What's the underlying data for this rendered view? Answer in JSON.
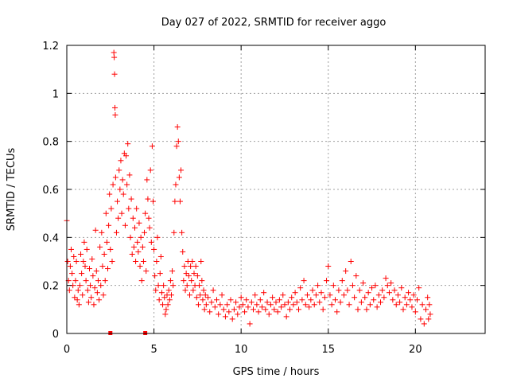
{
  "chart_data": {
    "type": "scatter",
    "title": "Day 027 of 2022, SRMTID for receiver aggo",
    "xlabel": "GPS time / hours",
    "ylabel": "SRMTID / TECUs",
    "xlim": [
      0,
      24
    ],
    "ylim": [
      0,
      1.2
    ],
    "x_ticks": [
      0,
      5,
      10,
      15,
      20
    ],
    "x_tick_labels": [
      "0",
      "5",
      "10",
      "15",
      "20"
    ],
    "y_ticks": [
      0,
      0.2,
      0.4,
      0.6,
      0.8,
      1.0,
      1.2
    ],
    "y_tick_labels": [
      "0",
      "0.2",
      "0.4",
      "0.6",
      "0.8",
      "1",
      "1.2"
    ],
    "grid": true,
    "marker": "plus",
    "series": [
      {
        "name": "SRMTID",
        "color": "#ff0000",
        "points": [
          [
            0.0,
            0.47
          ],
          [
            0.05,
            0.3
          ],
          [
            0.1,
            0.22
          ],
          [
            0.15,
            0.18
          ],
          [
            0.2,
            0.28
          ],
          [
            0.25,
            0.35
          ],
          [
            0.3,
            0.25
          ],
          [
            0.35,
            0.2
          ],
          [
            0.4,
            0.32
          ],
          [
            0.45,
            0.15
          ],
          [
            0.5,
            0.22
          ],
          [
            0.55,
            0.3
          ],
          [
            0.6,
            0.14
          ],
          [
            0.65,
            0.18
          ],
          [
            0.7,
            0.12
          ],
          [
            0.75,
            0.2
          ],
          [
            0.8,
            0.33
          ],
          [
            0.85,
            0.25
          ],
          [
            0.9,
            0.16
          ],
          [
            0.95,
            0.3
          ],
          [
            1.0,
            0.38
          ],
          [
            1.05,
            0.28
          ],
          [
            1.1,
            0.22
          ],
          [
            1.15,
            0.35
          ],
          [
            1.2,
            0.18
          ],
          [
            1.25,
            0.13
          ],
          [
            1.3,
            0.27
          ],
          [
            1.35,
            0.2
          ],
          [
            1.4,
            0.15
          ],
          [
            1.45,
            0.31
          ],
          [
            1.5,
            0.24
          ],
          [
            1.55,
            0.12
          ],
          [
            1.6,
            0.19
          ],
          [
            1.65,
            0.43
          ],
          [
            1.7,
            0.26
          ],
          [
            1.75,
            0.17
          ],
          [
            1.8,
            0.22
          ],
          [
            1.85,
            0.14
          ],
          [
            1.9,
            0.36
          ],
          [
            1.95,
            0.2
          ],
          [
            2.0,
            0.42
          ],
          [
            2.05,
            0.28
          ],
          [
            2.1,
            0.16
          ],
          [
            2.15,
            0.33
          ],
          [
            2.2,
            0.22
          ],
          [
            2.25,
            0.5
          ],
          [
            2.3,
            0.38
          ],
          [
            2.35,
            0.27
          ],
          [
            2.4,
            0.45
          ],
          [
            2.45,
            0.58
          ],
          [
            2.5,
            0.35
          ],
          [
            2.55,
            0.52
          ],
          [
            2.6,
            0.3
          ],
          [
            2.65,
            0.62
          ],
          [
            2.7,
            1.17
          ],
          [
            2.72,
            1.15
          ],
          [
            2.74,
            1.08
          ],
          [
            2.76,
            0.94
          ],
          [
            2.78,
            0.91
          ],
          [
            2.8,
            0.65
          ],
          [
            2.85,
            0.42
          ],
          [
            2.9,
            0.55
          ],
          [
            2.95,
            0.48
          ],
          [
            3.0,
            0.68
          ],
          [
            3.05,
            0.6
          ],
          [
            3.1,
            0.72
          ],
          [
            3.15,
            0.5
          ],
          [
            3.2,
            0.64
          ],
          [
            3.25,
            0.58
          ],
          [
            3.3,
            0.75
          ],
          [
            3.35,
            0.45
          ],
          [
            3.4,
            0.74
          ],
          [
            3.45,
            0.62
          ],
          [
            3.5,
            0.79
          ],
          [
            3.55,
            0.52
          ],
          [
            3.6,
            0.66
          ],
          [
            3.65,
            0.4
          ],
          [
            3.7,
            0.56
          ],
          [
            3.75,
            0.33
          ],
          [
            3.8,
            0.48
          ],
          [
            3.85,
            0.36
          ],
          [
            3.9,
            0.44
          ],
          [
            3.95,
            0.3
          ],
          [
            4.0,
            0.52
          ],
          [
            4.05,
            0.38
          ],
          [
            4.1,
            0.34
          ],
          [
            4.15,
            0.46
          ],
          [
            4.2,
            0.28
          ],
          [
            4.25,
            0.4
          ],
          [
            4.3,
            0.22
          ],
          [
            4.35,
            0.36
          ],
          [
            4.4,
            0.3
          ],
          [
            4.45,
            0.42
          ],
          [
            4.5,
            0.5
          ],
          [
            4.55,
            0.26
          ],
          [
            4.6,
            0.64
          ],
          [
            4.65,
            0.56
          ],
          [
            4.7,
            0.48
          ],
          [
            4.75,
            0.44
          ],
          [
            4.8,
            0.68
          ],
          [
            4.85,
            0.38
          ],
          [
            4.9,
            0.78
          ],
          [
            4.95,
            0.55
          ],
          [
            5.0,
            0.35
          ],
          [
            5.05,
            0.24
          ],
          [
            5.1,
            0.18
          ],
          [
            5.15,
            0.3
          ],
          [
            5.2,
            0.4
          ],
          [
            5.25,
            0.2
          ],
          [
            5.3,
            0.14
          ],
          [
            5.35,
            0.25
          ],
          [
            5.4,
            0.32
          ],
          [
            5.45,
            0.17
          ],
          [
            5.5,
            0.12
          ],
          [
            5.55,
            0.2
          ],
          [
            5.6,
            0.15
          ],
          [
            5.65,
            0.08
          ],
          [
            5.7,
            0.1
          ],
          [
            5.75,
            0.16
          ],
          [
            5.8,
            0.12
          ],
          [
            5.85,
            0.18
          ],
          [
            5.9,
            0.14
          ],
          [
            5.95,
            0.22
          ],
          [
            6.0,
            0.16
          ],
          [
            6.05,
            0.26
          ],
          [
            6.1,
            0.2
          ],
          [
            6.15,
            0.42
          ],
          [
            6.2,
            0.55
          ],
          [
            6.25,
            0.62
          ],
          [
            6.3,
            0.78
          ],
          [
            6.35,
            0.86
          ],
          [
            6.4,
            0.8
          ],
          [
            6.45,
            0.65
          ],
          [
            6.5,
            0.55
          ],
          [
            6.55,
            0.68
          ],
          [
            6.6,
            0.42
          ],
          [
            6.65,
            0.34
          ],
          [
            6.7,
            0.22
          ],
          [
            6.75,
            0.28
          ],
          [
            6.8,
            0.18
          ],
          [
            6.85,
            0.25
          ],
          [
            6.9,
            0.2
          ],
          [
            6.95,
            0.3
          ],
          [
            7.0,
            0.24
          ],
          [
            7.05,
            0.16
          ],
          [
            7.1,
            0.28
          ],
          [
            7.15,
            0.22
          ],
          [
            7.2,
            0.3
          ],
          [
            7.25,
            0.18
          ],
          [
            7.3,
            0.25
          ],
          [
            7.35,
            0.2
          ],
          [
            7.4,
            0.28
          ],
          [
            7.45,
            0.15
          ],
          [
            7.5,
            0.24
          ],
          [
            7.55,
            0.12
          ],
          [
            7.6,
            0.2
          ],
          [
            7.65,
            0.16
          ],
          [
            7.7,
            0.3
          ],
          [
            7.75,
            0.22
          ],
          [
            7.8,
            0.14
          ],
          [
            7.85,
            0.18
          ],
          [
            7.9,
            0.1
          ],
          [
            7.95,
            0.16
          ],
          [
            8.0,
            0.12
          ],
          [
            8.1,
            0.15
          ],
          [
            8.2,
            0.09
          ],
          [
            8.3,
            0.13
          ],
          [
            8.4,
            0.18
          ],
          [
            8.5,
            0.11
          ],
          [
            8.6,
            0.14
          ],
          [
            8.7,
            0.08
          ],
          [
            8.8,
            0.12
          ],
          [
            8.9,
            0.16
          ],
          [
            9.0,
            0.1
          ],
          [
            9.1,
            0.07
          ],
          [
            9.2,
            0.12
          ],
          [
            9.3,
            0.09
          ],
          [
            9.4,
            0.14
          ],
          [
            9.5,
            0.06
          ],
          [
            9.6,
            0.1
          ],
          [
            9.7,
            0.13
          ],
          [
            9.8,
            0.08
          ],
          [
            9.9,
            0.11
          ],
          [
            10.0,
            0.15
          ],
          [
            10.1,
            0.12
          ],
          [
            10.2,
            0.09
          ],
          [
            10.3,
            0.14
          ],
          [
            10.4,
            0.11
          ],
          [
            10.5,
            0.04
          ],
          [
            10.6,
            0.13
          ],
          [
            10.7,
            0.1
          ],
          [
            10.8,
            0.16
          ],
          [
            10.9,
            0.12
          ],
          [
            11.0,
            0.09
          ],
          [
            11.1,
            0.14
          ],
          [
            11.2,
            0.11
          ],
          [
            11.3,
            0.17
          ],
          [
            11.4,
            0.1
          ],
          [
            11.5,
            0.13
          ],
          [
            11.6,
            0.08
          ],
          [
            11.7,
            0.12
          ],
          [
            11.8,
            0.15
          ],
          [
            11.9,
            0.1
          ],
          [
            12.0,
            0.13
          ],
          [
            12.1,
            0.09
          ],
          [
            12.2,
            0.14
          ],
          [
            12.3,
            0.11
          ],
          [
            12.4,
            0.16
          ],
          [
            12.5,
            0.12
          ],
          [
            12.6,
            0.07
          ],
          [
            12.7,
            0.13
          ],
          [
            12.8,
            0.1
          ],
          [
            12.9,
            0.15
          ],
          [
            13.0,
            0.12
          ],
          [
            13.1,
            0.17
          ],
          [
            13.2,
            0.13
          ],
          [
            13.3,
            0.1
          ],
          [
            13.4,
            0.19
          ],
          [
            13.5,
            0.14
          ],
          [
            13.6,
            0.22
          ],
          [
            13.7,
            0.12
          ],
          [
            13.8,
            0.16
          ],
          [
            13.9,
            0.11
          ],
          [
            14.0,
            0.14
          ],
          [
            14.1,
            0.18
          ],
          [
            14.2,
            0.12
          ],
          [
            14.3,
            0.16
          ],
          [
            14.4,
            0.2
          ],
          [
            14.5,
            0.13
          ],
          [
            14.6,
            0.17
          ],
          [
            14.7,
            0.1
          ],
          [
            14.8,
            0.15
          ],
          [
            14.9,
            0.22
          ],
          [
            15.0,
            0.28
          ],
          [
            15.1,
            0.16
          ],
          [
            15.2,
            0.12
          ],
          [
            15.3,
            0.2
          ],
          [
            15.4,
            0.14
          ],
          [
            15.5,
            0.09
          ],
          [
            15.6,
            0.18
          ],
          [
            15.7,
            0.13
          ],
          [
            15.8,
            0.22
          ],
          [
            15.9,
            0.16
          ],
          [
            16.0,
            0.26
          ],
          [
            16.1,
            0.18
          ],
          [
            16.2,
            0.12
          ],
          [
            16.3,
            0.3
          ],
          [
            16.4,
            0.2
          ],
          [
            16.5,
            0.15
          ],
          [
            16.6,
            0.24
          ],
          [
            16.7,
            0.1
          ],
          [
            16.8,
            0.18
          ],
          [
            16.9,
            0.13
          ],
          [
            17.0,
            0.21
          ],
          [
            17.1,
            0.15
          ],
          [
            17.2,
            0.1
          ],
          [
            17.3,
            0.17
          ],
          [
            17.4,
            0.12
          ],
          [
            17.5,
            0.19
          ],
          [
            17.6,
            0.14
          ],
          [
            17.7,
            0.2
          ],
          [
            17.8,
            0.11
          ],
          [
            17.9,
            0.16
          ],
          [
            18.0,
            0.13
          ],
          [
            18.1,
            0.18
          ],
          [
            18.2,
            0.15
          ],
          [
            18.3,
            0.23
          ],
          [
            18.4,
            0.2
          ],
          [
            18.5,
            0.17
          ],
          [
            18.6,
            0.21
          ],
          [
            18.7,
            0.14
          ],
          [
            18.8,
            0.18
          ],
          [
            18.9,
            0.12
          ],
          [
            19.0,
            0.16
          ],
          [
            19.1,
            0.13
          ],
          [
            19.2,
            0.19
          ],
          [
            19.3,
            0.1
          ],
          [
            19.4,
            0.15
          ],
          [
            19.5,
            0.12
          ],
          [
            19.6,
            0.17
          ],
          [
            19.7,
            0.14
          ],
          [
            19.8,
            0.11
          ],
          [
            19.9,
            0.16
          ],
          [
            20.0,
            0.09
          ],
          [
            20.1,
            0.14
          ],
          [
            20.2,
            0.19
          ],
          [
            20.3,
            0.06
          ],
          [
            20.4,
            0.12
          ],
          [
            20.5,
            0.04
          ],
          [
            20.6,
            0.1
          ],
          [
            20.7,
            0.15
          ],
          [
            20.75,
            0.06
          ],
          [
            20.8,
            0.12
          ],
          [
            20.85,
            0.08
          ]
        ]
      }
    ],
    "zero_markers": [
      2.5,
      4.5
    ]
  }
}
